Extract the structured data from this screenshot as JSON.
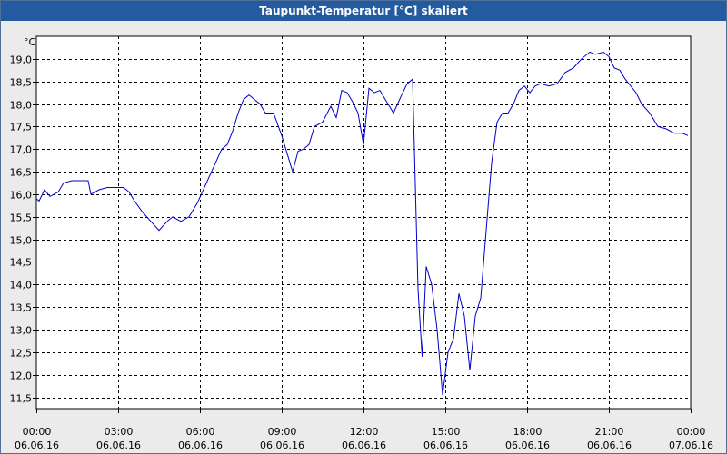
{
  "window": {
    "title": "Taupunkt-Temperatur [°C] skaliert"
  },
  "colors": {
    "title_bar": "#245aa0",
    "line": "#0000cc",
    "plot_bg": "#ffffff",
    "grid": "#000000"
  },
  "chart_data": {
    "type": "line",
    "title": "Taupunkt-Temperatur [°C] skaliert",
    "ylabel": "°C",
    "xlabel": "",
    "ylim": [
      11.25,
      19.5
    ],
    "xlim": [
      0,
      24
    ],
    "grid": true,
    "y_ticks": [
      {
        "v": 11.5,
        "label": "11,5"
      },
      {
        "v": 12.0,
        "label": "12,0"
      },
      {
        "v": 12.5,
        "label": "12,5"
      },
      {
        "v": 13.0,
        "label": "13,0"
      },
      {
        "v": 13.5,
        "label": "13,5"
      },
      {
        "v": 14.0,
        "label": "14,0"
      },
      {
        "v": 14.5,
        "label": "14,5"
      },
      {
        "v": 15.0,
        "label": "15,0"
      },
      {
        "v": 15.5,
        "label": "15,5"
      },
      {
        "v": 16.0,
        "label": "16,0"
      },
      {
        "v": 16.5,
        "label": "16,5"
      },
      {
        "v": 17.0,
        "label": "17,0"
      },
      {
        "v": 17.5,
        "label": "17,5"
      },
      {
        "v": 18.0,
        "label": "18,0"
      },
      {
        "v": 18.5,
        "label": "18,5"
      },
      {
        "v": 19.0,
        "label": "19,0"
      }
    ],
    "x_ticks": [
      {
        "v": 0,
        "time": "00:00",
        "date": "06.06.16"
      },
      {
        "v": 3,
        "time": "03:00",
        "date": "06.06.16"
      },
      {
        "v": 6,
        "time": "06:00",
        "date": "06.06.16"
      },
      {
        "v": 9,
        "time": "09:00",
        "date": "06.06.16"
      },
      {
        "v": 12,
        "time": "12:00",
        "date": "06.06.16"
      },
      {
        "v": 15,
        "time": "15:00",
        "date": "06.06.16"
      },
      {
        "v": 18,
        "time": "18:00",
        "date": "06.06.16"
      },
      {
        "v": 21,
        "time": "21:00",
        "date": "06.06.16"
      },
      {
        "v": 24,
        "time": "00:00",
        "date": "07.06.16"
      }
    ],
    "series": [
      {
        "x": [
          0,
          0.1,
          0.3,
          0.5,
          0.8,
          1.0,
          1.3,
          1.6,
          1.9,
          2.0,
          2.3,
          2.6,
          3.0,
          3.2,
          3.4,
          3.6,
          3.9,
          4.2,
          4.5,
          4.8,
          5.0,
          5.3,
          5.6,
          5.9,
          6.2,
          6.5,
          6.8,
          7.0,
          7.2,
          7.4,
          7.6,
          7.8,
          8.0,
          8.2,
          8.4,
          8.7,
          9.0,
          9.2,
          9.4,
          9.6,
          9.8,
          10.0,
          10.2,
          10.5,
          10.8,
          11.0,
          11.2,
          11.4,
          11.6,
          11.8,
          12.0,
          12.2,
          12.4,
          12.6,
          12.8,
          13.1,
          13.4,
          13.6,
          13.8,
          14.0,
          14.15,
          14.3,
          14.5,
          14.7,
          14.9,
          15.1,
          15.3,
          15.5,
          15.7,
          15.9,
          16.1,
          16.3,
          16.5,
          16.7,
          16.9,
          17.1,
          17.3,
          17.5,
          17.7,
          17.9,
          18.1,
          18.3,
          18.5,
          18.8,
          19.1,
          19.4,
          19.7,
          20.0,
          20.3,
          20.5,
          20.8,
          21.0,
          21.2,
          21.4,
          21.6,
          21.8,
          22.0,
          22.2,
          22.5,
          22.8,
          23.1,
          23.4,
          23.7,
          23.9
        ],
        "values": [
          15.9,
          15.85,
          16.1,
          15.95,
          16.05,
          16.25,
          16.3,
          16.3,
          16.3,
          16.0,
          16.1,
          16.15,
          16.15,
          16.15,
          16.05,
          15.85,
          15.6,
          15.4,
          15.2,
          15.4,
          15.5,
          15.4,
          15.5,
          15.8,
          16.2,
          16.6,
          17.0,
          17.1,
          17.4,
          17.8,
          18.1,
          18.2,
          18.1,
          18.0,
          17.8,
          17.8,
          17.3,
          16.9,
          16.5,
          16.95,
          17.0,
          17.1,
          17.5,
          17.6,
          17.95,
          17.7,
          18.3,
          18.25,
          18.05,
          17.8,
          17.1,
          18.35,
          18.25,
          18.3,
          18.1,
          17.8,
          18.2,
          18.45,
          18.55,
          13.9,
          12.4,
          14.4,
          14.0,
          13.0,
          11.55,
          12.5,
          12.8,
          13.8,
          13.3,
          12.1,
          13.3,
          13.7,
          15.2,
          16.7,
          17.6,
          17.8,
          17.8,
          18.0,
          18.3,
          18.4,
          18.25,
          18.4,
          18.45,
          18.4,
          18.45,
          18.7,
          18.8,
          19.0,
          19.15,
          19.1,
          19.15,
          19.05,
          18.8,
          18.75,
          18.55,
          18.4,
          18.25,
          18.0,
          17.8,
          17.5,
          17.45,
          17.35,
          17.35,
          17.3
        ]
      }
    ]
  }
}
